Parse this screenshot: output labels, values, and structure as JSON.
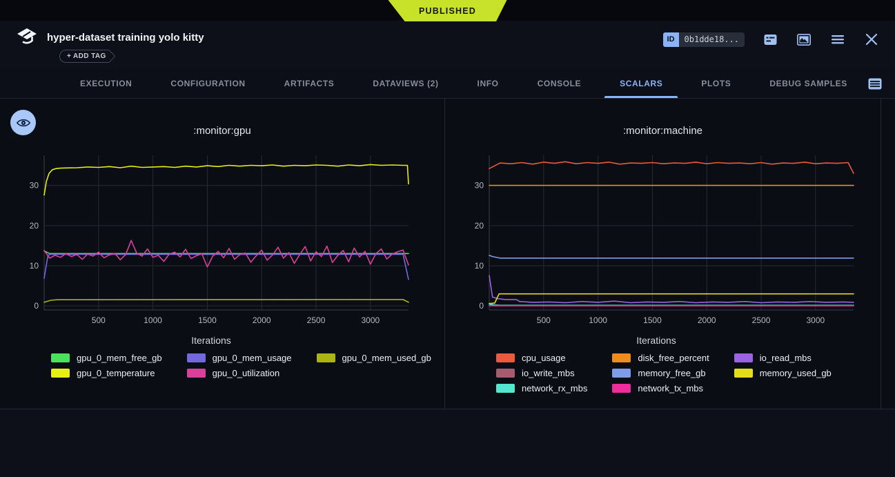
{
  "banner": {
    "label": "PUBLISHED"
  },
  "header": {
    "title": "hyper-dataset training yolo kitty",
    "add_tag_label": "+ ADD TAG",
    "id_label": "ID",
    "id_value": "0b1dde18..."
  },
  "icons": {
    "logo": "clearml-logo",
    "header": [
      "notes-icon",
      "image-icon",
      "menu-icon",
      "close-icon"
    ],
    "tab_bar": [
      "table-icon",
      "settings-gear-icon"
    ],
    "content": [
      "eye-icon"
    ]
  },
  "tabs": {
    "items": [
      {
        "label": "EXECUTION",
        "active": false
      },
      {
        "label": "CONFIGURATION",
        "active": false
      },
      {
        "label": "ARTIFACTS",
        "active": false
      },
      {
        "label": "DATAVIEWS (2)",
        "active": false
      },
      {
        "label": "INFO",
        "active": false
      },
      {
        "label": "CONSOLE",
        "active": false
      },
      {
        "label": "SCALARS",
        "active": true
      },
      {
        "label": "PLOTS",
        "active": false
      },
      {
        "label": "DEBUG SAMPLES",
        "active": false
      }
    ]
  },
  "colors": {
    "accent": "#8ab4f8",
    "published": "#c8e229",
    "background": "#0a0d14",
    "grid": "#262b36"
  },
  "chart_data": [
    {
      "type": "line",
      "title": ":monitor:gpu",
      "xlabel": "Iterations",
      "x_ticks": [
        500,
        1000,
        1500,
        2000,
        2500,
        3000
      ],
      "y_ticks": [
        0,
        10,
        20,
        30
      ],
      "xlim": [
        0,
        3350
      ],
      "ylim": [
        -1,
        37.5
      ],
      "series": [
        {
          "name": "gpu_0_mem_free_gb",
          "color": "#4be25b",
          "x": [
            0,
            50,
            3350
          ],
          "y": [
            13.7,
            13.05,
            13.05
          ]
        },
        {
          "name": "gpu_0_mem_usage",
          "color": "#7368e0",
          "x": [
            0,
            35,
            60,
            3300,
            3350
          ],
          "y": [
            6.9,
            12.6,
            12.85,
            12.85,
            6.6
          ]
        },
        {
          "name": "gpu_0_mem_used_gb",
          "color": "#aab513",
          "x": [
            0,
            60,
            120,
            3300,
            3350
          ],
          "y": [
            0.9,
            1.4,
            1.55,
            1.6,
            0.9
          ]
        },
        {
          "name": "gpu_0_temperature",
          "color": "#e6ee12",
          "x": [
            0,
            20,
            45,
            75,
            110,
            150,
            200,
            300,
            400,
            500,
            600,
            700,
            800,
            900,
            1000,
            1100,
            1200,
            1300,
            1400,
            1500,
            1600,
            1700,
            1800,
            1900,
            2000,
            2100,
            2200,
            2300,
            2400,
            2500,
            2600,
            2700,
            2800,
            2900,
            3000,
            3100,
            3200,
            3300,
            3340,
            3350
          ],
          "y": [
            27.6,
            31.0,
            33.0,
            33.9,
            34.2,
            34.3,
            34.35,
            34.4,
            34.6,
            34.5,
            34.7,
            34.4,
            34.8,
            34.5,
            34.6,
            34.7,
            34.5,
            34.8,
            34.6,
            34.9,
            34.7,
            35.0,
            34.8,
            35.0,
            34.9,
            35.1,
            34.8,
            35.0,
            34.9,
            35.1,
            35.0,
            34.8,
            35.1,
            34.9,
            35.2,
            35.0,
            35.1,
            35.0,
            35.0,
            30.4
          ]
        },
        {
          "name": "gpu_0_utilization",
          "color": "#d8409c",
          "x": [
            0,
            50,
            100,
            150,
            200,
            250,
            300,
            350,
            400,
            450,
            500,
            550,
            600,
            650,
            700,
            750,
            800,
            850,
            900,
            950,
            1000,
            1050,
            1100,
            1150,
            1200,
            1250,
            1300,
            1350,
            1400,
            1450,
            1500,
            1550,
            1600,
            1650,
            1700,
            1750,
            1800,
            1850,
            1900,
            1950,
            2000,
            2050,
            2100,
            2150,
            2200,
            2250,
            2300,
            2350,
            2400,
            2450,
            2500,
            2550,
            2600,
            2650,
            2700,
            2750,
            2800,
            2850,
            2900,
            2950,
            3000,
            3050,
            3100,
            3150,
            3200,
            3250,
            3300,
            3350
          ],
          "y": [
            13.8,
            11.9,
            12.6,
            12.1,
            13.0,
            12.3,
            12.8,
            11.6,
            12.9,
            12.4,
            13.4,
            12.0,
            12.7,
            13.1,
            11.5,
            12.8,
            16.3,
            13.2,
            12.4,
            14.2,
            12.1,
            12.6,
            11.1,
            12.9,
            13.4,
            12.2,
            14.1,
            11.8,
            12.5,
            13.0,
            9.7,
            12.4,
            13.6,
            12.0,
            14.3,
            11.6,
            12.8,
            13.2,
            10.9,
            12.5,
            13.9,
            11.4,
            12.7,
            14.6,
            11.9,
            13.3,
            10.6,
            12.8,
            14.8,
            11.2,
            13.5,
            12.3,
            14.9,
            10.8,
            12.6,
            13.8,
            11.0,
            14.4,
            12.2,
            13.6,
            10.4,
            13.0,
            14.2,
            11.7,
            12.9,
            13.5,
            13.9,
            10.2
          ]
        }
      ]
    },
    {
      "type": "line",
      "title": ":monitor:machine",
      "xlabel": "Iterations",
      "x_ticks": [
        500,
        1000,
        1500,
        2000,
        2500,
        3000
      ],
      "y_ticks": [
        0,
        10,
        20,
        30
      ],
      "xlim": [
        0,
        3350
      ],
      "ylim": [
        -1,
        37.5
      ],
      "series": [
        {
          "name": "cpu_usage",
          "color": "#eb5a3c",
          "x": [
            0,
            100,
            200,
            300,
            400,
            500,
            600,
            700,
            800,
            900,
            1000,
            1100,
            1200,
            1300,
            1400,
            1500,
            1600,
            1700,
            1800,
            1900,
            2000,
            2100,
            2200,
            2300,
            2400,
            2500,
            2600,
            2700,
            2800,
            2900,
            3000,
            3100,
            3200,
            3300,
            3350
          ],
          "y": [
            34.2,
            35.6,
            35.4,
            35.7,
            35.3,
            35.8,
            35.5,
            35.9,
            35.4,
            35.7,
            35.5,
            35.8,
            35.3,
            35.6,
            35.5,
            35.7,
            35.4,
            35.6,
            35.5,
            35.8,
            35.4,
            35.7,
            35.5,
            35.6,
            35.4,
            35.7,
            35.3,
            35.6,
            35.5,
            35.8,
            35.4,
            35.6,
            35.5,
            35.7,
            33.0
          ]
        },
        {
          "name": "disk_free_percent",
          "color": "#ef8b1d",
          "x": [
            0,
            3350
          ],
          "y": [
            30,
            30
          ]
        },
        {
          "name": "io_read_mbs",
          "color": "#9b62e3",
          "x": [
            0,
            30,
            80,
            150,
            250,
            280,
            400,
            550,
            700,
            850,
            1000,
            1150,
            1300,
            1450,
            1600,
            1750,
            1900,
            2050,
            2200,
            2350,
            2500,
            2650,
            2800,
            2950,
            3100,
            3250,
            3350
          ],
          "y": [
            7.6,
            2.2,
            1.8,
            1.6,
            1.6,
            1.1,
            0.9,
            1.0,
            0.8,
            1.1,
            0.9,
            1.2,
            0.8,
            1.0,
            0.9,
            1.1,
            0.8,
            1.0,
            0.9,
            1.1,
            0.8,
            1.0,
            0.9,
            1.1,
            0.9,
            1.0,
            0.9
          ]
        },
        {
          "name": "io_write_mbs",
          "color": "#a85a6e",
          "x": [
            0,
            100,
            3350
          ],
          "y": [
            0.4,
            0.15,
            0.15
          ]
        },
        {
          "name": "memory_free_gb",
          "color": "#7e9ce8",
          "x": [
            0,
            30,
            100,
            3350
          ],
          "y": [
            12.6,
            12.3,
            11.9,
            11.9
          ]
        },
        {
          "name": "memory_used_gb",
          "color": "#e3dc16",
          "x": [
            0,
            50,
            90,
            3350
          ],
          "y": [
            0.6,
            0.7,
            3.0,
            3.0
          ]
        },
        {
          "name": "network_rx_mbs",
          "color": "#55e6cf",
          "x": [
            0,
            50,
            3350
          ],
          "y": [
            0.5,
            0.15,
            0.15
          ]
        },
        {
          "name": "network_tx_mbs",
          "color": "#ee2d9d",
          "x": [
            0,
            3350
          ],
          "y": [
            0.05,
            0.05
          ]
        }
      ]
    }
  ]
}
